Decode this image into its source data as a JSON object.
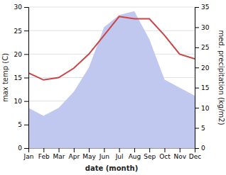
{
  "chart_data": {
    "type": "line",
    "xlabel": "date (month)",
    "ylabel": "max temp (C)",
    "y2label": "med. precipitation (kg/m2)",
    "categories": [
      "Jan",
      "Feb",
      "Mar",
      "Apr",
      "May",
      "Jun",
      "Jul",
      "Aug",
      "Sep",
      "Oct",
      "Nov",
      "Dec"
    ],
    "series": [
      {
        "type": "area",
        "axis": "y2",
        "color": "#c0c8f0",
        "values": [
          10,
          8,
          10,
          14,
          20,
          30,
          33,
          34,
          27,
          17,
          15,
          13
        ]
      },
      {
        "type": "line",
        "color": "#cc4444",
        "values": [
          16,
          14.5,
          15,
          17,
          20,
          24,
          28,
          27.5,
          27.5,
          24,
          20,
          19
        ]
      }
    ],
    "ylim": [
      0,
      30
    ],
    "yticks": [
      0,
      5,
      10,
      15,
      20,
      25,
      30
    ],
    "y2lim": [
      0,
      35
    ],
    "y2ticks": [
      0,
      5,
      10,
      15,
      20,
      25,
      30,
      35
    ],
    "grid": true
  }
}
